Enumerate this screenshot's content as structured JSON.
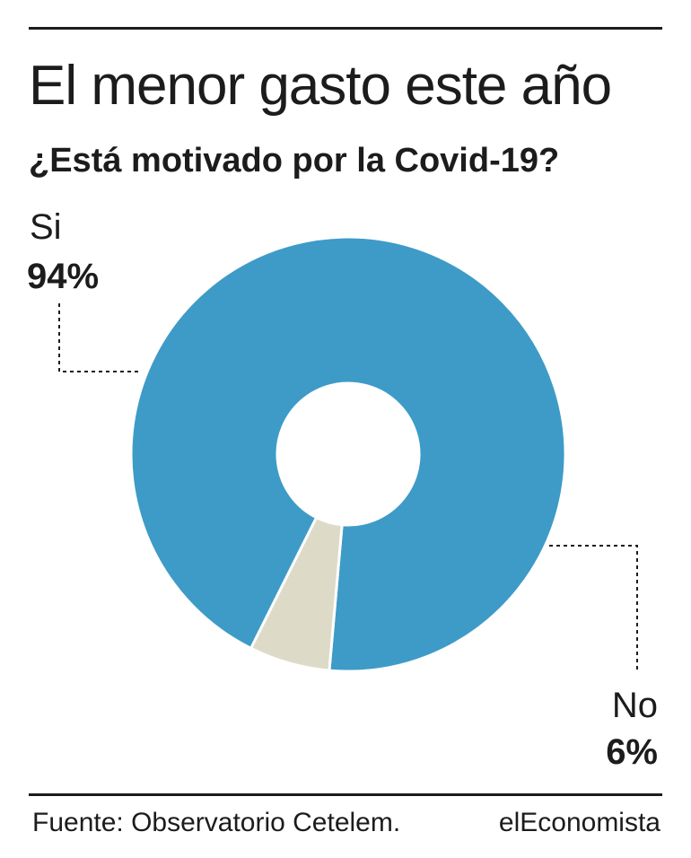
{
  "header": {
    "title": "El menor gasto este año",
    "subtitle": "¿Está motivado por la Covid-19?"
  },
  "footer": {
    "source": "Fuente: Observatorio Cetelem.",
    "brand": "elEconomista"
  },
  "chart_data": {
    "type": "pie",
    "variant": "donut",
    "title": "El menor gasto este año",
    "subtitle": "¿Está motivado por la Covid-19?",
    "slices": [
      {
        "label": "Si",
        "value": 94,
        "value_label": "94%",
        "color": "#3e9bc7"
      },
      {
        "label": "No",
        "value": 6,
        "value_label": "6%",
        "color": "#dddac8"
      }
    ],
    "legend": "none",
    "colors": {
      "separator": "#ffffff",
      "text": "#1c1c1c"
    }
  }
}
